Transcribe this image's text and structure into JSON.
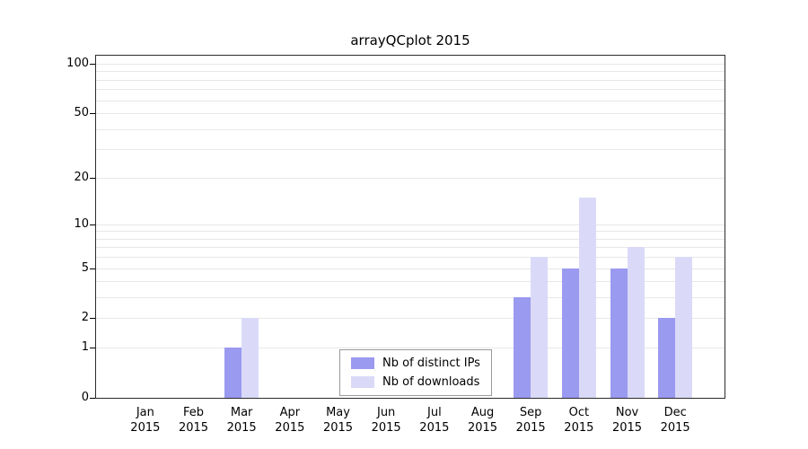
{
  "chart_data": {
    "type": "bar",
    "title": "arrayQCplot 2015",
    "categories": [
      "Jan",
      "Feb",
      "Mar",
      "Apr",
      "May",
      "Jun",
      "Jul",
      "Aug",
      "Sep",
      "Oct",
      "Nov",
      "Dec"
    ],
    "year_label": "2015",
    "series": [
      {
        "name": "Nb of distinct IPs",
        "color": "#9a9af0",
        "values": [
          0,
          0,
          1,
          0,
          0,
          0,
          0,
          0,
          3,
          5,
          5,
          2
        ]
      },
      {
        "name": "Nb of downloads",
        "color": "#dadaf8",
        "values": [
          0,
          0,
          2,
          0,
          0,
          0,
          0,
          0,
          6,
          15,
          7,
          6
        ]
      }
    ],
    "y_axis": {
      "scale": "log1p",
      "ticks": [
        0,
        1,
        2,
        5,
        10,
        20,
        50,
        100
      ],
      "gridlines": [
        1,
        2,
        3,
        4,
        5,
        6,
        7,
        8,
        9,
        10,
        20,
        30,
        40,
        50,
        60,
        70,
        80,
        90,
        100
      ],
      "max": 100
    },
    "x_axis": {
      "label": ""
    },
    "legend_position": "bottom-center",
    "grid": "horizontal"
  },
  "colors": {
    "grid": "#e7e7e7",
    "spine": "#2b2b2b",
    "background": "#ffffff"
  }
}
